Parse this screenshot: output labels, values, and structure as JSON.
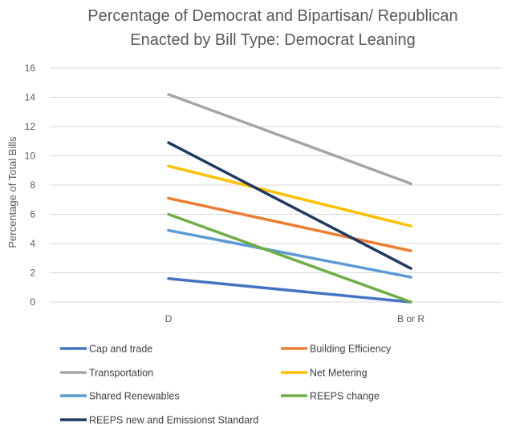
{
  "chart_data": {
    "type": "line",
    "title": "Percentage of Democrat and Bipartisan/ Republican",
    "subtitle": "Enacted by Bill Type: Democrat Leaning",
    "xlabel": "",
    "ylabel": "Percentage of Total Bills",
    "categories": [
      "D",
      "B or R"
    ],
    "ylim": [
      0,
      16
    ],
    "yticks": [
      0,
      2,
      4,
      6,
      8,
      10,
      12,
      14,
      16
    ],
    "grid": true,
    "legend_position": "bottom",
    "series": [
      {
        "name": "Cap and trade",
        "color": "#4472C4",
        "values": [
          1.6,
          0.0
        ]
      },
      {
        "name": "Building Efficiency",
        "color": "#ED7D31",
        "values": [
          7.1,
          3.5
        ]
      },
      {
        "name": "Transportation",
        "color": "#A5A5A5",
        "values": [
          14.2,
          8.1
        ]
      },
      {
        "name": "Net Metering",
        "color": "#FFC000",
        "values": [
          9.3,
          5.2
        ]
      },
      {
        "name": "Shared Renewables",
        "color": "#5B9BD5",
        "values": [
          4.9,
          1.7
        ]
      },
      {
        "name": "REEPS change",
        "color": "#70AD47",
        "values": [
          6.0,
          0.0
        ]
      },
      {
        "name": "REEPS new and Emissionst Standard",
        "color": "#203864",
        "values": [
          10.9,
          2.3
        ]
      }
    ]
  }
}
